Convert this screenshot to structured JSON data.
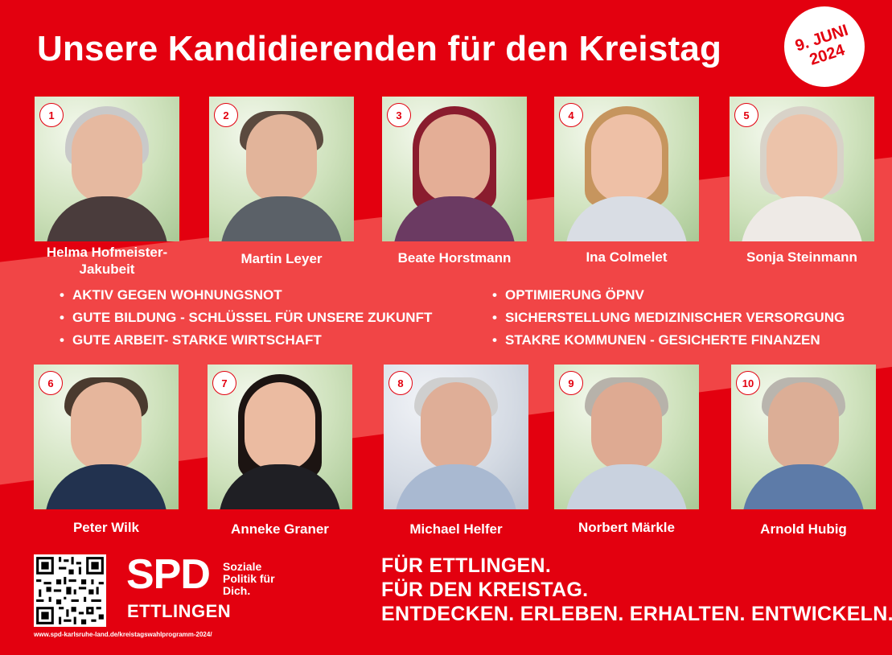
{
  "title": "Unsere Kandidierenden für den Kreistag",
  "date_badge": "9. JUNI 2024",
  "colors": {
    "brand_red": "#e3000f",
    "band_red": "#f24d4d",
    "white": "#ffffff"
  },
  "candidates": [
    {
      "number": "1",
      "name": "Helma Hofmeister-Jakubeit"
    },
    {
      "number": "2",
      "name": "Martin Leyer"
    },
    {
      "number": "3",
      "name": "Beate Horstmann"
    },
    {
      "number": "4",
      "name": "Ina Colmelet"
    },
    {
      "number": "5",
      "name": "Sonja Steinmann"
    },
    {
      "number": "6",
      "name": "Peter Wilk"
    },
    {
      "number": "7",
      "name": "Anneke Graner"
    },
    {
      "number": "8",
      "name": "Michael Helfer"
    },
    {
      "number": "9",
      "name": "Norbert Märkle"
    },
    {
      "number": "10",
      "name": "Arnold Hubig"
    }
  ],
  "goals_left": [
    "AKTIV GEGEN WOHNUNGSNOT",
    "GUTE BILDUNG - SCHLÜSSEL FÜR UNSERE ZUKUNFT",
    "GUTE ARBEIT- STARKE WIRTSCHAFT"
  ],
  "goals_right": [
    "OPTIMIERUNG ÖPNV",
    "SICHERSTELLUNG MEDIZINISCHER VERSORGUNG",
    "STAKRE KOMMUNEN - GESICHERTE FINANZEN"
  ],
  "logo": {
    "brand": "SPD",
    "claim_line1": "Soziale",
    "claim_line2": "Politik für",
    "claim_line3": "Dich.",
    "city": "ETTLINGEN"
  },
  "url": "www.spd-karlsruhe-land.de/kreistagswahlprogramm-2024/",
  "slogans": [
    "FÜR ETTLINGEN.",
    "FÜR DEN KREISTAG.",
    "ENTDECKEN. ERLEBEN. ERHALTEN. ENTWICKELN."
  ],
  "icons": {
    "qr": "qr-code-icon"
  }
}
